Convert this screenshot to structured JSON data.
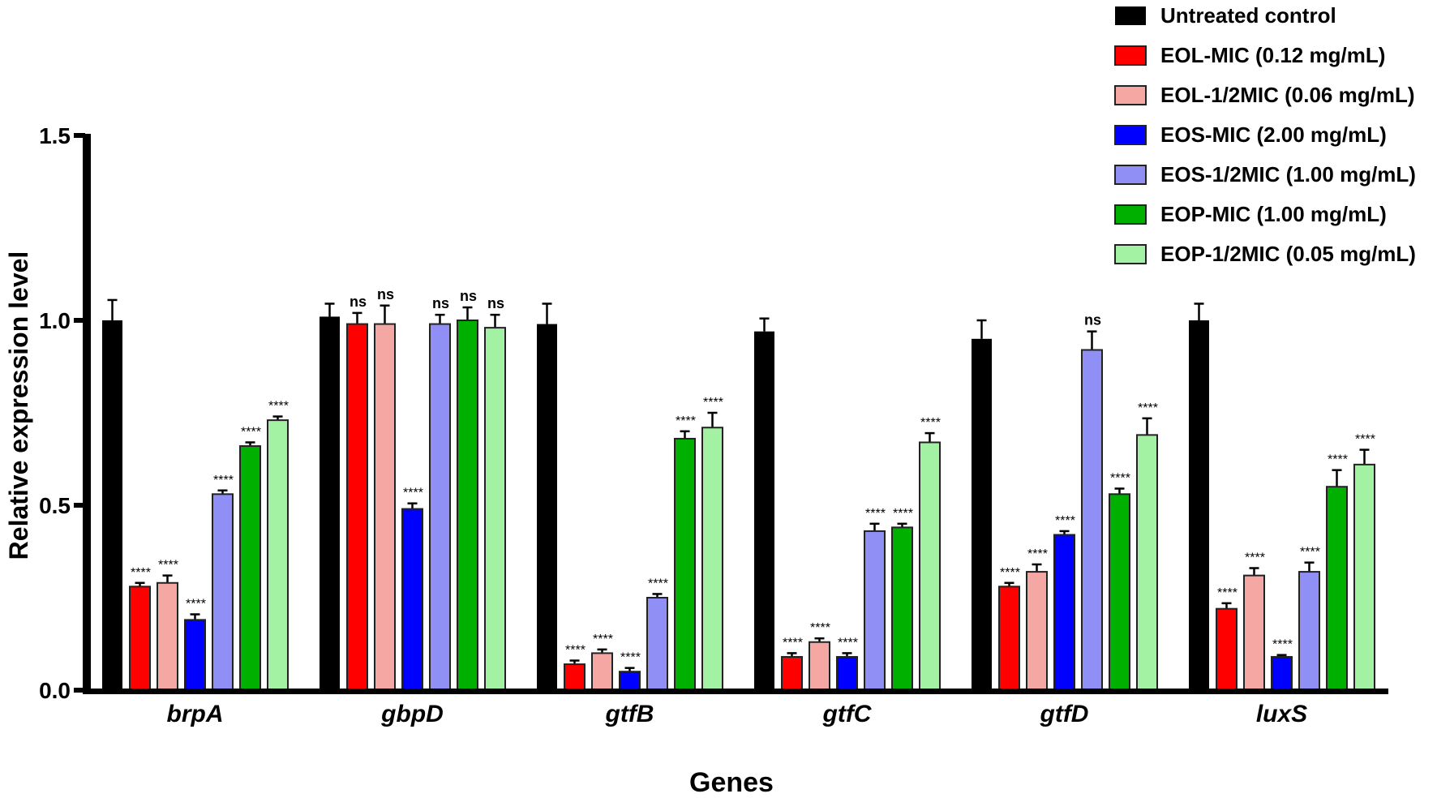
{
  "chart_data": {
    "type": "bar",
    "title": "",
    "xlabel": "Genes",
    "ylabel": "Relative expression level",
    "ylim": [
      0,
      1.5
    ],
    "yticks": [
      "0.0",
      "0.5",
      "1.0",
      "1.5"
    ],
    "categories": [
      "brpA",
      "gbpD",
      "gtfB",
      "gtfC",
      "gtfD",
      "luxS"
    ],
    "legend_position": "top-right",
    "series": [
      {
        "name": "Untreated control",
        "color": "#000000",
        "values": [
          1.0,
          1.01,
          0.99,
          0.97,
          0.95,
          1.0
        ],
        "errors": [
          0.055,
          0.035,
          0.055,
          0.035,
          0.05,
          0.045
        ],
        "labels": [
          "",
          "",
          "",
          "",
          "",
          ""
        ]
      },
      {
        "name": "EOL-MIC (0.12 mg/mL)",
        "color": "#ff0000",
        "values": [
          0.28,
          0.99,
          0.07,
          0.09,
          0.28,
          0.22
        ],
        "errors": [
          0.01,
          0.03,
          0.01,
          0.01,
          0.01,
          0.015
        ],
        "labels": [
          "****",
          "ns",
          "****",
          "****",
          "****",
          "****"
        ]
      },
      {
        "name": "EOL-1/2MIC (0.06 mg/mL)",
        "color": "#f4a7a3",
        "values": [
          0.29,
          0.99,
          0.1,
          0.13,
          0.32,
          0.31
        ],
        "errors": [
          0.02,
          0.05,
          0.01,
          0.01,
          0.02,
          0.02
        ],
        "labels": [
          "****",
          "ns",
          "****",
          "****",
          "****",
          "****"
        ]
      },
      {
        "name": "EOS-MIC (2.00 mg/mL)",
        "color": "#0000ff",
        "values": [
          0.19,
          0.49,
          0.05,
          0.09,
          0.42,
          0.09
        ],
        "errors": [
          0.015,
          0.015,
          0.01,
          0.01,
          0.01,
          0.005
        ],
        "labels": [
          "****",
          "****",
          "****",
          "****",
          "****",
          "****"
        ]
      },
      {
        "name": "EOS-1/2MIC (1.00 mg/mL)",
        "color": "#8f8ff5",
        "values": [
          0.53,
          0.99,
          0.25,
          0.43,
          0.92,
          0.32
        ],
        "errors": [
          0.01,
          0.025,
          0.01,
          0.02,
          0.05,
          0.025
        ],
        "labels": [
          "****",
          "ns",
          "****",
          "****",
          "ns",
          "****"
        ]
      },
      {
        "name": "EOP-MIC (1.00 mg/mL)",
        "color": "#00b000",
        "values": [
          0.66,
          1.0,
          0.68,
          0.44,
          0.53,
          0.55
        ],
        "errors": [
          0.01,
          0.035,
          0.02,
          0.01,
          0.015,
          0.045
        ],
        "labels": [
          "****",
          "ns",
          "****",
          "****",
          "****",
          "****"
        ]
      },
      {
        "name": "EOP-1/2MIC (0.05 mg/mL)",
        "color": "#a3f2a3",
        "values": [
          0.73,
          0.98,
          0.71,
          0.67,
          0.69,
          0.61
        ],
        "errors": [
          0.01,
          0.035,
          0.04,
          0.025,
          0.045,
          0.04
        ],
        "labels": [
          "****",
          "ns",
          "****",
          "****",
          "****",
          "****"
        ]
      }
    ]
  }
}
